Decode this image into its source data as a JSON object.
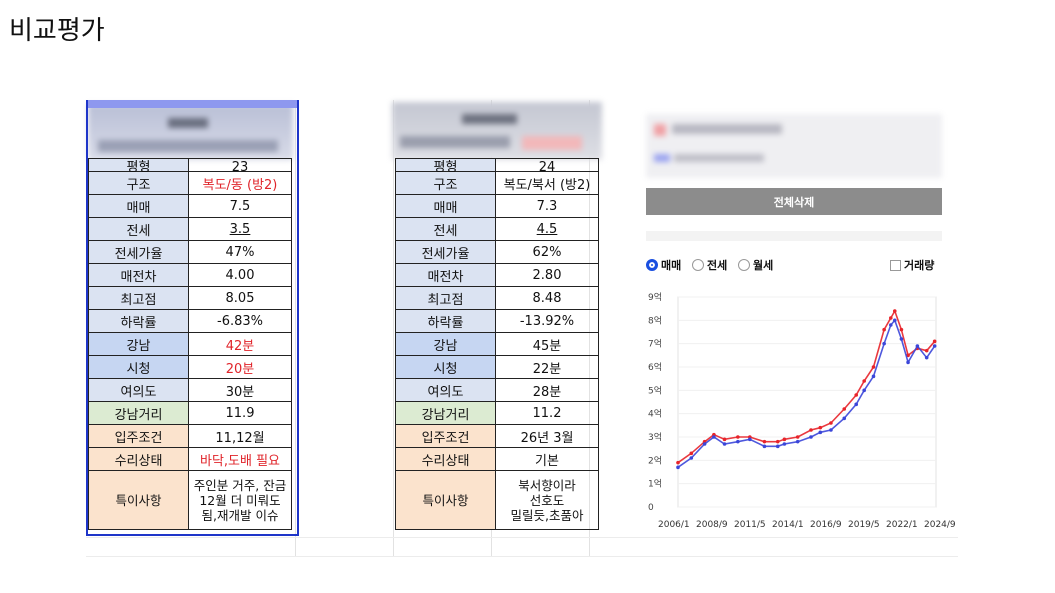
{
  "page": {
    "title": "비교평가"
  },
  "left_table": {
    "partial_row": {
      "label": "평형",
      "value": "23"
    },
    "rows": [
      {
        "label": "구조",
        "value": "복도/동 (방2)",
        "style": "red",
        "lbl": "gray"
      },
      {
        "label": "매매",
        "value": "7.5",
        "lbl": "gray"
      },
      {
        "label": "전세",
        "value": "3.5",
        "style": "ul",
        "lbl": "gray"
      },
      {
        "label": "전세가율",
        "value": "47%",
        "lbl": "gray"
      },
      {
        "label": "매전차",
        "value": "4.00",
        "lbl": "gray"
      },
      {
        "label": "최고점",
        "value": "8.05",
        "lbl": "gray"
      },
      {
        "label": "하락률",
        "value": "-6.83%",
        "lbl": "gray"
      },
      {
        "label": "강남",
        "value": "42분",
        "style": "red",
        "lbl": "blue2"
      },
      {
        "label": "시청",
        "value": "20분",
        "style": "red",
        "lbl": "blue2"
      },
      {
        "label": "여의도",
        "value": "30분",
        "lbl": "gray"
      },
      {
        "label": "강남거리",
        "value": "11.9",
        "lbl": "green"
      },
      {
        "label": "입주조건",
        "value": "11,12월",
        "lbl": "peach"
      },
      {
        "label": "수리상태",
        "value": "바닥,도배 필요",
        "style": "red",
        "lbl": "peach"
      }
    ],
    "notes": {
      "label": "특이사항",
      "lines": [
        "주인분 거주, 잔금",
        "12월 더 미뤄도",
        "됨,재개발 이슈"
      ]
    }
  },
  "right_table": {
    "partial_row": {
      "label": "평형",
      "value": "24"
    },
    "rows": [
      {
        "label": "구조",
        "value": "복도/북서 (방2)",
        "lbl": "gray"
      },
      {
        "label": "매매",
        "value": "7.3",
        "lbl": "gray"
      },
      {
        "label": "전세",
        "value": "4.5",
        "style": "ul",
        "lbl": "gray"
      },
      {
        "label": "전세가율",
        "value": "62%",
        "lbl": "gray"
      },
      {
        "label": "매전차",
        "value": "2.80",
        "lbl": "gray"
      },
      {
        "label": "최고점",
        "value": "8.48",
        "lbl": "gray"
      },
      {
        "label": "하락률",
        "value": "-13.92%",
        "lbl": "gray"
      },
      {
        "label": "강남",
        "value": "45분",
        "lbl": "blue2"
      },
      {
        "label": "시청",
        "value": "22분",
        "lbl": "blue2"
      },
      {
        "label": "여의도",
        "value": "28분",
        "lbl": "gray"
      },
      {
        "label": "강남거리",
        "value": "11.2",
        "lbl": "green"
      },
      {
        "label": "입주조건",
        "value": "26년 3월",
        "lbl": "peach"
      },
      {
        "label": "수리상태",
        "value": "기본",
        "lbl": "peach"
      }
    ],
    "notes": {
      "label": "특이사항",
      "lines": [
        "북서향이라",
        "선호도",
        "밀릴듯,초품아"
      ]
    }
  },
  "panel": {
    "delete_all_label": "전체삭제",
    "radios": [
      {
        "label": "매매",
        "selected": true
      },
      {
        "label": "전세",
        "selected": false
      },
      {
        "label": "월세",
        "selected": false
      }
    ],
    "volume_checkbox_label": "거래량",
    "colors": {
      "series_a": "#e8242a",
      "series_b": "#3b46d9",
      "accent": "#1a4fe0"
    }
  },
  "chart_data": {
    "type": "line",
    "ylim": [
      0,
      9
    ],
    "y_tick_labels": [
      "0",
      "1억",
      "2억",
      "3억",
      "4억",
      "5억",
      "6억",
      "7억",
      "8억",
      "9억"
    ],
    "x_tick_labels": [
      "2006/1",
      "2008/9",
      "2011/5",
      "2014/1",
      "2016/9",
      "2019/5",
      "2022/1",
      "2024/9"
    ],
    "x_range": [
      2006.0,
      2025.4
    ],
    "series": [
      {
        "color": "#e8242a",
        "x": [
          2006.0,
          2007.0,
          2008.0,
          2008.7,
          2009.5,
          2010.5,
          2011.4,
          2012.5,
          2013.5,
          2014.0,
          2015.0,
          2016.0,
          2016.7,
          2017.5,
          2018.5,
          2019.4,
          2020.0,
          2020.7,
          2021.5,
          2022.0,
          2022.3,
          2022.8,
          2023.3,
          2024.0,
          2024.7,
          2025.3
        ],
        "values": [
          1.9,
          2.3,
          2.8,
          3.1,
          2.9,
          3.0,
          3.0,
          2.8,
          2.8,
          2.9,
          3.0,
          3.3,
          3.4,
          3.6,
          4.2,
          4.8,
          5.4,
          6.0,
          7.6,
          8.1,
          8.4,
          7.6,
          6.5,
          6.8,
          6.7,
          7.1
        ]
      },
      {
        "color": "#3b46d9",
        "x": [
          2006.0,
          2007.0,
          2008.0,
          2008.7,
          2009.5,
          2010.5,
          2011.4,
          2012.5,
          2013.5,
          2014.0,
          2015.0,
          2016.0,
          2016.7,
          2017.5,
          2018.5,
          2019.4,
          2020.0,
          2020.7,
          2021.5,
          2022.0,
          2022.3,
          2022.8,
          2023.3,
          2024.0,
          2024.7,
          2025.3
        ],
        "values": [
          1.7,
          2.1,
          2.7,
          3.0,
          2.7,
          2.8,
          2.9,
          2.6,
          2.6,
          2.7,
          2.8,
          3.0,
          3.2,
          3.3,
          3.8,
          4.4,
          5.0,
          5.6,
          7.0,
          7.8,
          8.0,
          7.2,
          6.2,
          6.9,
          6.4,
          6.9
        ]
      }
    ]
  }
}
